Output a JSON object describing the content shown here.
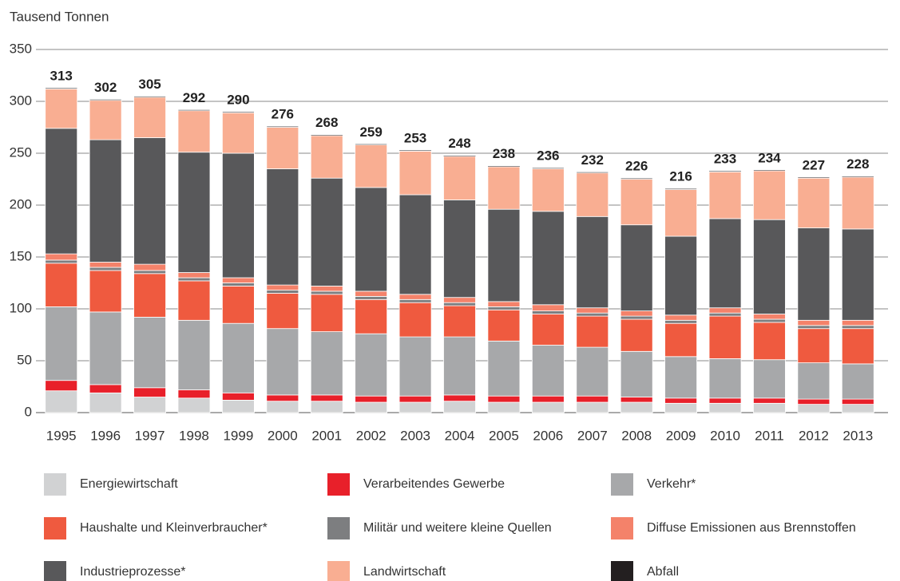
{
  "chart_data": {
    "type": "stacked_bar",
    "y_axis_label": "Tausend Tonnen",
    "categories": [
      "1995",
      "1996",
      "1997",
      "1998",
      "1999",
      "2000",
      "2001",
      "2002",
      "2003",
      "2004",
      "2005",
      "2006",
      "2007",
      "2008",
      "2009",
      "2010",
      "2011",
      "2012",
      "2013"
    ],
    "totals": [
      313,
      302,
      305,
      292,
      290,
      276,
      268,
      259,
      253,
      248,
      238,
      236,
      232,
      226,
      216,
      233,
      234,
      227,
      228
    ],
    "ylim": [
      0,
      350
    ],
    "yticks": [
      0,
      50,
      100,
      150,
      200,
      250,
      300,
      350
    ],
    "grid": true,
    "series": [
      {
        "name": "Energiewirtschaft",
        "color": "#d1d2d3",
        "values": [
          21,
          19,
          15,
          14,
          12,
          11,
          11,
          10,
          10,
          11,
          10,
          10,
          10,
          10,
          9,
          9,
          9,
          8,
          8
        ]
      },
      {
        "name": "Verarbeitendes Gewerbe",
        "color": "#e8202a",
        "values": [
          10,
          8,
          9,
          8,
          7,
          6,
          6,
          6,
          6,
          6,
          6,
          6,
          6,
          5,
          5,
          5,
          5,
          5,
          5
        ]
      },
      {
        "name": "Verkehr*",
        "color": "#a7a8aa",
        "values": [
          71,
          70,
          68,
          67,
          67,
          64,
          61,
          60,
          57,
          56,
          53,
          49,
          47,
          44,
          40,
          38,
          37,
          35,
          34
        ]
      },
      {
        "name": "Haushalte und Kleinverbraucher*",
        "color": "#ef5a3f",
        "values": [
          42,
          40,
          42,
          38,
          36,
          34,
          36,
          33,
          33,
          30,
          30,
          30,
          30,
          31,
          32,
          41,
          36,
          33,
          34
        ]
      },
      {
        "name": "Militär und weitere kleine Quellen",
        "color": "#7d7e80",
        "values": [
          3,
          3,
          3,
          3,
          3,
          3,
          3,
          3,
          3,
          3,
          3,
          3,
          3,
          3,
          3,
          3,
          3,
          3,
          3
        ]
      },
      {
        "name": "Diffuse Emissionen aus Brennstoffen",
        "color": "#f4826a",
        "values": [
          6,
          5,
          6,
          5,
          5,
          5,
          5,
          5,
          5,
          5,
          5,
          6,
          5,
          5,
          5,
          5,
          5,
          5,
          5
        ]
      },
      {
        "name": "Industrieprozesse*",
        "color": "#58585a",
        "values": [
          121,
          118,
          122,
          116,
          120,
          112,
          104,
          100,
          96,
          94,
          89,
          90,
          88,
          83,
          76,
          86,
          91,
          89,
          88
        ]
      },
      {
        "name": "Landwirtschaft",
        "color": "#f9ae92",
        "values": [
          38,
          38,
          39,
          40,
          39,
          40,
          41,
          41,
          42,
          42,
          41,
          41,
          42,
          44,
          45,
          45,
          47,
          48,
          50
        ]
      },
      {
        "name": "Abfall",
        "color": "#231f20",
        "values": [
          1,
          1,
          1,
          1,
          1,
          1,
          1,
          1,
          1,
          1,
          1,
          1,
          1,
          1,
          1,
          1,
          1,
          1,
          1
        ]
      }
    ]
  }
}
